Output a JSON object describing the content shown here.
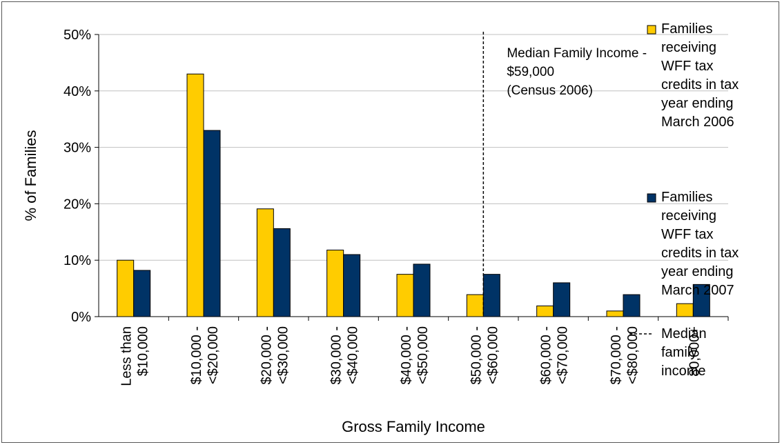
{
  "chart_data": {
    "type": "bar",
    "title": "",
    "xlabel": "Gross Family Income",
    "ylabel": "% of Families",
    "ylim": [
      0,
      50
    ],
    "yticks": [
      "0%",
      "10%",
      "20%",
      "30%",
      "40%",
      "50%"
    ],
    "grid": true,
    "legend_position": "right",
    "categories": [
      [
        "Less than",
        "$10,000"
      ],
      [
        "$10,000 -",
        "<$20,000"
      ],
      [
        "$20,000 -",
        "<$30,000"
      ],
      [
        "$30,000 -",
        "<$40,000"
      ],
      [
        "$40,000 -",
        "<$50,000"
      ],
      [
        "$50,000 -",
        "<$60,000"
      ],
      [
        "$60,000 -",
        "<$70,000"
      ],
      [
        "$70,000 -",
        "<$80,000"
      ],
      [
        "80,000+"
      ]
    ],
    "series": [
      {
        "name": "Families receiving WFF tax credits in tax year ending March 2006",
        "legend_lines": [
          "Families",
          "receiving",
          "WFF tax",
          "credits in tax",
          "year ending",
          "March 2006"
        ],
        "color": "#FFCC00",
        "values": [
          10.0,
          43.0,
          19.1,
          11.8,
          7.5,
          3.9,
          1.9,
          1.0,
          2.3
        ]
      },
      {
        "name": "Families receiving WFF tax credits in tax year ending March 2007",
        "legend_lines": [
          "Families",
          "receiving",
          "WFF tax",
          "credits in tax",
          "year ending",
          "March 2007"
        ],
        "color": "#003366",
        "values": [
          8.2,
          33.0,
          15.6,
          11.0,
          9.3,
          7.5,
          6.0,
          3.9,
          5.7
        ]
      }
    ],
    "reference_line": {
      "label": "Median family income",
      "legend_lines": [
        "Median",
        "family",
        "income"
      ],
      "x_value": "$59,000",
      "annotation_lines": [
        "Median Family Income -",
        "$59,000",
        "(Census 2006)"
      ]
    }
  }
}
